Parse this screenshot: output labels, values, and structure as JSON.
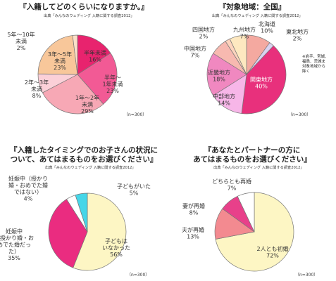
{
  "panels": [
    {
      "title": "『入籍してどのくらいになりますか。』",
      "title2": "",
      "source": "出典「みんなのウェディング 入籍に関する調査2012」",
      "n_label": "（n=300）"
    },
    {
      "title": "『対象地域：全国』",
      "title2": "",
      "source": "出典「みんなのウェディング 入籍に関する調査2012」",
      "n_label": "（n=300）",
      "note": [
        "※岩手、宮城、",
        "福島、茨城ま",
        "対象地域から",
        "除く"
      ]
    },
    {
      "title": "『入籍したタイミングでのお子さんの状況に",
      "title2": "ついて、あてはまるものをお選びください』",
      "source": "出典「みんなのウェディング 入籍に関する調査2012」",
      "n_label": "（n=300）"
    },
    {
      "title": "『あなたとパートナーの方に",
      "title2": "あてはまるものをお選びください』",
      "source": "出典「みんなのウェディング 入籍に関する調査2012」",
      "n_label": "（n=300）"
    }
  ],
  "chart_data": [
    {
      "type": "pie",
      "title": "『入籍してどのくらいになりますか。』",
      "categories": [
        "半年未満",
        "半年～1年未満",
        "1年～2年未満",
        "2年～3年未満",
        "3年～5年未満",
        "5年～10年未満"
      ],
      "values": [
        16,
        23,
        29,
        8,
        23,
        2
      ],
      "colors": [
        "#e8236e",
        "#f25a95",
        "#f7a8b5",
        "#fbd0d8",
        "#f8c79a",
        "#fbe0c8"
      ],
      "labels": [
        [
          "半年未満",
          "16%"
        ],
        [
          "半年～",
          "1年未満",
          "23%"
        ],
        [
          "1年～2年",
          "未満",
          "29%"
        ],
        [
          "2年～3年",
          "未満",
          "8%"
        ],
        [
          "3年～5年",
          "未満",
          "23%"
        ],
        [
          "5年～10年",
          "未満",
          "2%"
        ]
      ]
    },
    {
      "type": "pie",
      "title": "『対象地域：全国』",
      "categories": [
        "北海道",
        "東北地方",
        "関東地方",
        "中部地方",
        "近畿地方",
        "中国地方",
        "四国地方",
        "九州地方"
      ],
      "values": [
        10,
        2,
        40,
        14,
        18,
        7,
        2,
        7
      ],
      "colors": [
        "#f4a9a0",
        "#d9d2f0",
        "#e8307c",
        "#f7b6e8",
        "#f088c0",
        "#f7b9b0",
        "#fdd3bd",
        "#fde8c0"
      ],
      "labels": [
        [
          "北海道",
          "10%"
        ],
        [
          "東北地方",
          "2%"
        ],
        [
          "関東地方",
          "40%"
        ],
        [
          "中部地方",
          "14%"
        ],
        [
          "近畿地方",
          "18%"
        ],
        [
          "中国地方",
          "7%"
        ],
        [
          "四国地方",
          "2%"
        ],
        [
          "九州地方",
          "7%"
        ]
      ]
    },
    {
      "type": "pie",
      "title": "『入籍したタイミングでのお子さんの状況について、あてはまるものをお選びください』",
      "categories": [
        "子どもはいなかった",
        "妊娠中（授かり婚・おめでた婚だった）",
        "妊娠中（授かり婚・おめでた婚ではない）",
        "子どもがいた"
      ],
      "values": [
        56,
        35,
        4,
        5
      ],
      "colors": [
        "#fdf6c4",
        "#ea2c80",
        "#ffffff",
        "#46d6e8"
      ],
      "labels": [
        [
          "子どもは",
          "いなかった",
          "56%"
        ],
        [
          "妊娠中",
          "（授かり婚・お",
          "めでた婚だっ",
          "た）",
          "35%"
        ],
        [
          "妊娠中（授かり",
          "婚・おめでた婚",
          "ではない）",
          "4%"
        ],
        [
          "子どもがいた",
          "5%"
        ]
      ]
    },
    {
      "type": "pie",
      "title": "『あなたとパートナーの方にあてはまるものをお選びください』",
      "categories": [
        "2人とも初婚",
        "夫が再婚",
        "妻が再婚",
        "どちらとも再婚"
      ],
      "values": [
        72,
        13,
        8,
        7
      ],
      "colors": [
        "#fdf6c4",
        "#f38a90",
        "#e8408a",
        "#ffffff"
      ],
      "labels": [
        [
          "2人とも初婚",
          "72%"
        ],
        [
          "夫が再婚",
          "13%"
        ],
        [
          "妻が再婚",
          "8%"
        ],
        [
          "どちらとも再婚",
          "7%"
        ]
      ]
    }
  ]
}
